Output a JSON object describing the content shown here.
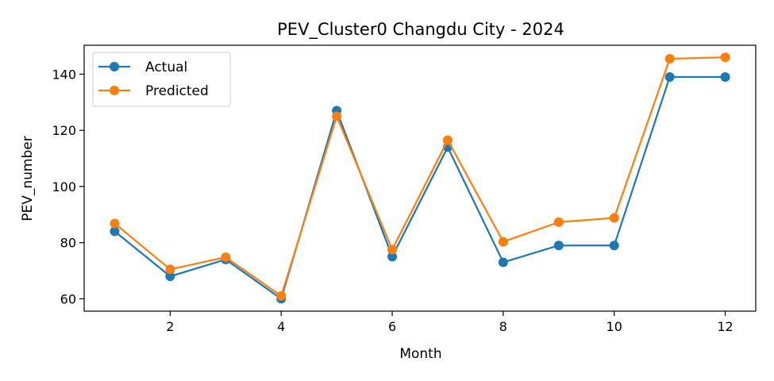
{
  "chart_data": {
    "type": "line",
    "title": "PEV_Cluster0 Changdu City - 2024",
    "xlabel": "Month",
    "ylabel": "PEV_number",
    "x": [
      1,
      2,
      3,
      4,
      5,
      6,
      7,
      8,
      9,
      10,
      11,
      12
    ],
    "xlim": [
      0.45,
      12.55
    ],
    "ylim": [
      55.6,
      150.3
    ],
    "xticks": [
      2,
      4,
      6,
      8,
      10,
      12
    ],
    "yticks": [
      60,
      80,
      100,
      120,
      140
    ],
    "grid": false,
    "legend_position": "upper-left",
    "series": [
      {
        "name": "Actual",
        "color": "#1f77b4",
        "values": [
          84,
          68,
          74,
          60,
          127,
          75,
          114,
          73,
          79,
          79,
          139,
          139
        ]
      },
      {
        "name": "Predicted",
        "color": "#ff7f0e",
        "values": [
          86.8,
          70.5,
          74.8,
          61,
          125,
          77.5,
          116.5,
          80.3,
          87.3,
          88.8,
          145.5,
          146
        ]
      }
    ]
  }
}
